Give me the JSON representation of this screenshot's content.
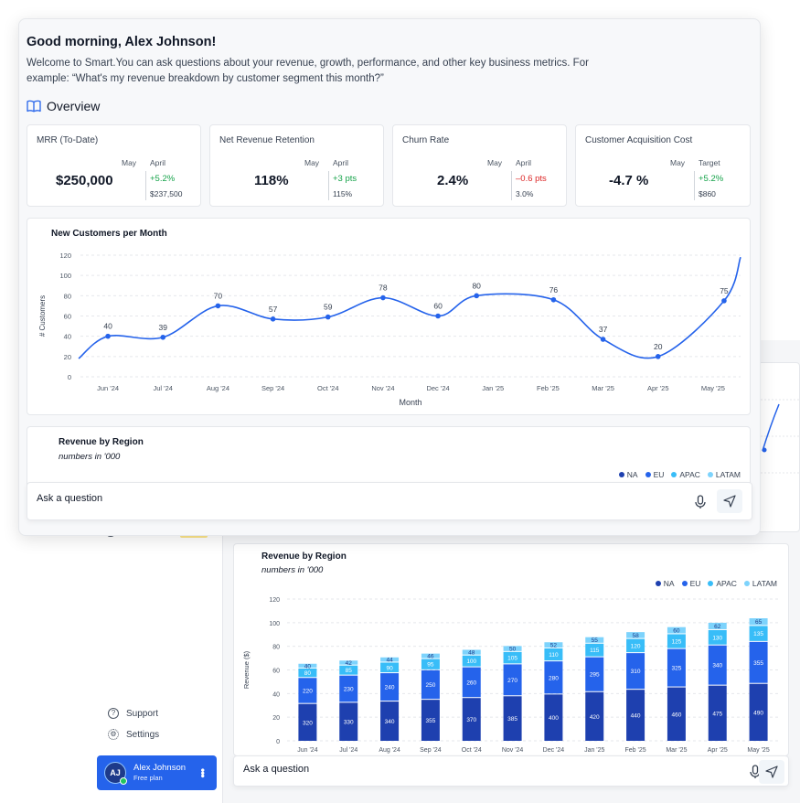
{
  "greeting": "Good morning, Alex Johnson!",
  "intro": "Welcome to Smart.You can ask questions about your revenue, growth, performance,  and other key business metrics. For example: “What's my revenue breakdown by customer segment this month?”",
  "overview_label": "Overview",
  "kpis": [
    {
      "title": "MRR (To-Date)",
      "value": "$250,000",
      "col1": "May",
      "col2": "April",
      "delta": "+5.2%",
      "delta_dir": "up",
      "prev": "$237,500"
    },
    {
      "title": "Net Revenue Retention",
      "value": "118%",
      "col1": "May",
      "col2": "April",
      "delta": "+3 pts",
      "delta_dir": "up",
      "prev": "115%"
    },
    {
      "title": "Churn Rate",
      "value": "2.4%",
      "col1": "May",
      "col2": "April",
      "delta": "–0.6 pts",
      "delta_dir": "down",
      "prev": "3.0%"
    },
    {
      "title": "Customer Acquisition Cost",
      "value": "-4.7 %",
      "col1": "May",
      "col2": "Target",
      "delta": "+5.2%",
      "delta_dir": "up",
      "prev": "$860"
    }
  ],
  "ask": {
    "placeholder": "Ask a question"
  },
  "sidebar": {
    "support": "Support",
    "settings": "Settings"
  },
  "user": {
    "initials": "AJ",
    "name": "Alex Johnson",
    "plan": "Free plan"
  },
  "colors": {
    "accent": "#2563eb",
    "na": "#1e40af",
    "eu": "#2563eb",
    "apac": "#38bdf8",
    "latam": "#7dd3fc",
    "line": "#2563eb"
  },
  "chart_data": [
    {
      "type": "line",
      "title": "New Customers per Month",
      "xlabel": "Month",
      "ylabel": "# Customers",
      "ylim": [
        0,
        120
      ],
      "yticks": [
        0,
        20,
        40,
        60,
        80,
        100,
        120
      ],
      "categories": [
        "Jun '24",
        "Jul '24",
        "Aug '24",
        "Sep '24",
        "Oct '24",
        "Nov '24",
        "Dec '24",
        "Jan '25",
        "Feb '25",
        "Mar '25",
        "Apr '25",
        "May '25"
      ],
      "points": [
        {
          "x": 0.5,
          "value": 40
        },
        {
          "x": 1.5,
          "value": 39
        },
        {
          "x": 2.5,
          "value": 70
        },
        {
          "x": 3.5,
          "value": 57
        },
        {
          "x": 4.5,
          "value": 59
        },
        {
          "x": 5.5,
          "value": 78
        },
        {
          "x": 6.5,
          "value": 60
        },
        {
          "x": 7.2,
          "value": 80
        },
        {
          "x": 8.6,
          "value": 76
        },
        {
          "x": 9.5,
          "value": 37
        },
        {
          "x": 10.5,
          "value": 20
        },
        {
          "x": 11.7,
          "value": 75
        }
      ],
      "grid": true
    },
    {
      "type": "bar",
      "stacked": true,
      "title": "Revenue by Region",
      "subtitle": "numbers in '000",
      "ylabel": "Revenue ($)",
      "ylim": [
        0,
        120
      ],
      "yticks": [
        0,
        20,
        40,
        60,
        80,
        100,
        120
      ],
      "categories": [
        "Jun '24",
        "Jul '24",
        "Aug '24",
        "Sep '24",
        "Oct '24",
        "Nov '24",
        "Dec '24",
        "Jan '25",
        "Feb '25",
        "Mar '25",
        "Apr '25",
        "May '25"
      ],
      "legend_position": "top-right",
      "series": [
        {
          "name": "NA",
          "labels": [
            320,
            330,
            340,
            355,
            370,
            385,
            400,
            420,
            440,
            460,
            475,
            490
          ]
        },
        {
          "name": "EU",
          "labels": [
            220,
            230,
            240,
            250,
            260,
            270,
            280,
            295,
            310,
            325,
            340,
            355
          ]
        },
        {
          "name": "APAC",
          "labels": [
            80,
            85,
            90,
            95,
            100,
            105,
            110,
            115,
            120,
            125,
            130,
            135
          ]
        },
        {
          "name": "LATAM",
          "labels": [
            40,
            42,
            44,
            46,
            48,
            50,
            52,
            55,
            58,
            60,
            62,
            65
          ]
        }
      ]
    }
  ]
}
